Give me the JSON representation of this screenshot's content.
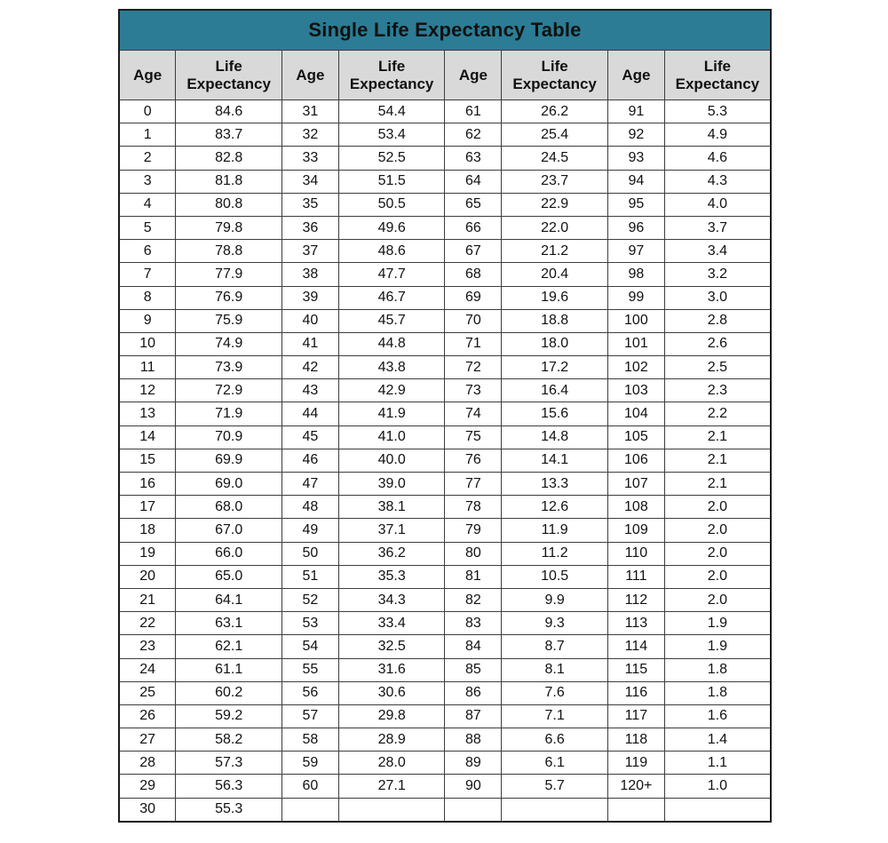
{
  "title": "Single Life Expectancy Table",
  "colors": {
    "title_bg": "#2b7c94",
    "title_text": "#f2fbfd",
    "header_bg": "#d9d9d9",
    "grid_border": "#3d3d3d"
  },
  "chart_data": {
    "type": "table",
    "title": "Single Life Expectancy Table",
    "column_headers": [
      "Age",
      "Life Expectancy",
      "Age",
      "Life Expectancy",
      "Age",
      "Life Expectancy",
      "Age",
      "Life Expectancy"
    ],
    "rows": [
      [
        "0",
        "84.6",
        "31",
        "54.4",
        "61",
        "26.2",
        "91",
        "5.3"
      ],
      [
        "1",
        "83.7",
        "32",
        "53.4",
        "62",
        "25.4",
        "92",
        "4.9"
      ],
      [
        "2",
        "82.8",
        "33",
        "52.5",
        "63",
        "24.5",
        "93",
        "4.6"
      ],
      [
        "3",
        "81.8",
        "34",
        "51.5",
        "64",
        "23.7",
        "94",
        "4.3"
      ],
      [
        "4",
        "80.8",
        "35",
        "50.5",
        "65",
        "22.9",
        "95",
        "4.0"
      ],
      [
        "5",
        "79.8",
        "36",
        "49.6",
        "66",
        "22.0",
        "96",
        "3.7"
      ],
      [
        "6",
        "78.8",
        "37",
        "48.6",
        "67",
        "21.2",
        "97",
        "3.4"
      ],
      [
        "7",
        "77.9",
        "38",
        "47.7",
        "68",
        "20.4",
        "98",
        "3.2"
      ],
      [
        "8",
        "76.9",
        "39",
        "46.7",
        "69",
        "19.6",
        "99",
        "3.0"
      ],
      [
        "9",
        "75.9",
        "40",
        "45.7",
        "70",
        "18.8",
        "100",
        "2.8"
      ],
      [
        "10",
        "74.9",
        "41",
        "44.8",
        "71",
        "18.0",
        "101",
        "2.6"
      ],
      [
        "11",
        "73.9",
        "42",
        "43.8",
        "72",
        "17.2",
        "102",
        "2.5"
      ],
      [
        "12",
        "72.9",
        "43",
        "42.9",
        "73",
        "16.4",
        "103",
        "2.3"
      ],
      [
        "13",
        "71.9",
        "44",
        "41.9",
        "74",
        "15.6",
        "104",
        "2.2"
      ],
      [
        "14",
        "70.9",
        "45",
        "41.0",
        "75",
        "14.8",
        "105",
        "2.1"
      ],
      [
        "15",
        "69.9",
        "46",
        "40.0",
        "76",
        "14.1",
        "106",
        "2.1"
      ],
      [
        "16",
        "69.0",
        "47",
        "39.0",
        "77",
        "13.3",
        "107",
        "2.1"
      ],
      [
        "17",
        "68.0",
        "48",
        "38.1",
        "78",
        "12.6",
        "108",
        "2.0"
      ],
      [
        "18",
        "67.0",
        "49",
        "37.1",
        "79",
        "11.9",
        "109",
        "2.0"
      ],
      [
        "19",
        "66.0",
        "50",
        "36.2",
        "80",
        "11.2",
        "110",
        "2.0"
      ],
      [
        "20",
        "65.0",
        "51",
        "35.3",
        "81",
        "10.5",
        "111",
        "2.0"
      ],
      [
        "21",
        "64.1",
        "52",
        "34.3",
        "82",
        "9.9",
        "112",
        "2.0"
      ],
      [
        "22",
        "63.1",
        "53",
        "33.4",
        "83",
        "9.3",
        "113",
        "1.9"
      ],
      [
        "23",
        "62.1",
        "54",
        "32.5",
        "84",
        "8.7",
        "114",
        "1.9"
      ],
      [
        "24",
        "61.1",
        "55",
        "31.6",
        "85",
        "8.1",
        "115",
        "1.8"
      ],
      [
        "25",
        "60.2",
        "56",
        "30.6",
        "86",
        "7.6",
        "116",
        "1.8"
      ],
      [
        "26",
        "59.2",
        "57",
        "29.8",
        "87",
        "7.1",
        "117",
        "1.6"
      ],
      [
        "27",
        "58.2",
        "58",
        "28.9",
        "88",
        "6.6",
        "118",
        "1.4"
      ],
      [
        "28",
        "57.3",
        "59",
        "28.0",
        "89",
        "6.1",
        "119",
        "1.1"
      ],
      [
        "29",
        "56.3",
        "60",
        "27.1",
        "90",
        "5.7",
        "120+",
        "1.0"
      ],
      [
        "30",
        "55.3",
        "",
        "",
        "",
        "",
        "",
        ""
      ]
    ]
  }
}
